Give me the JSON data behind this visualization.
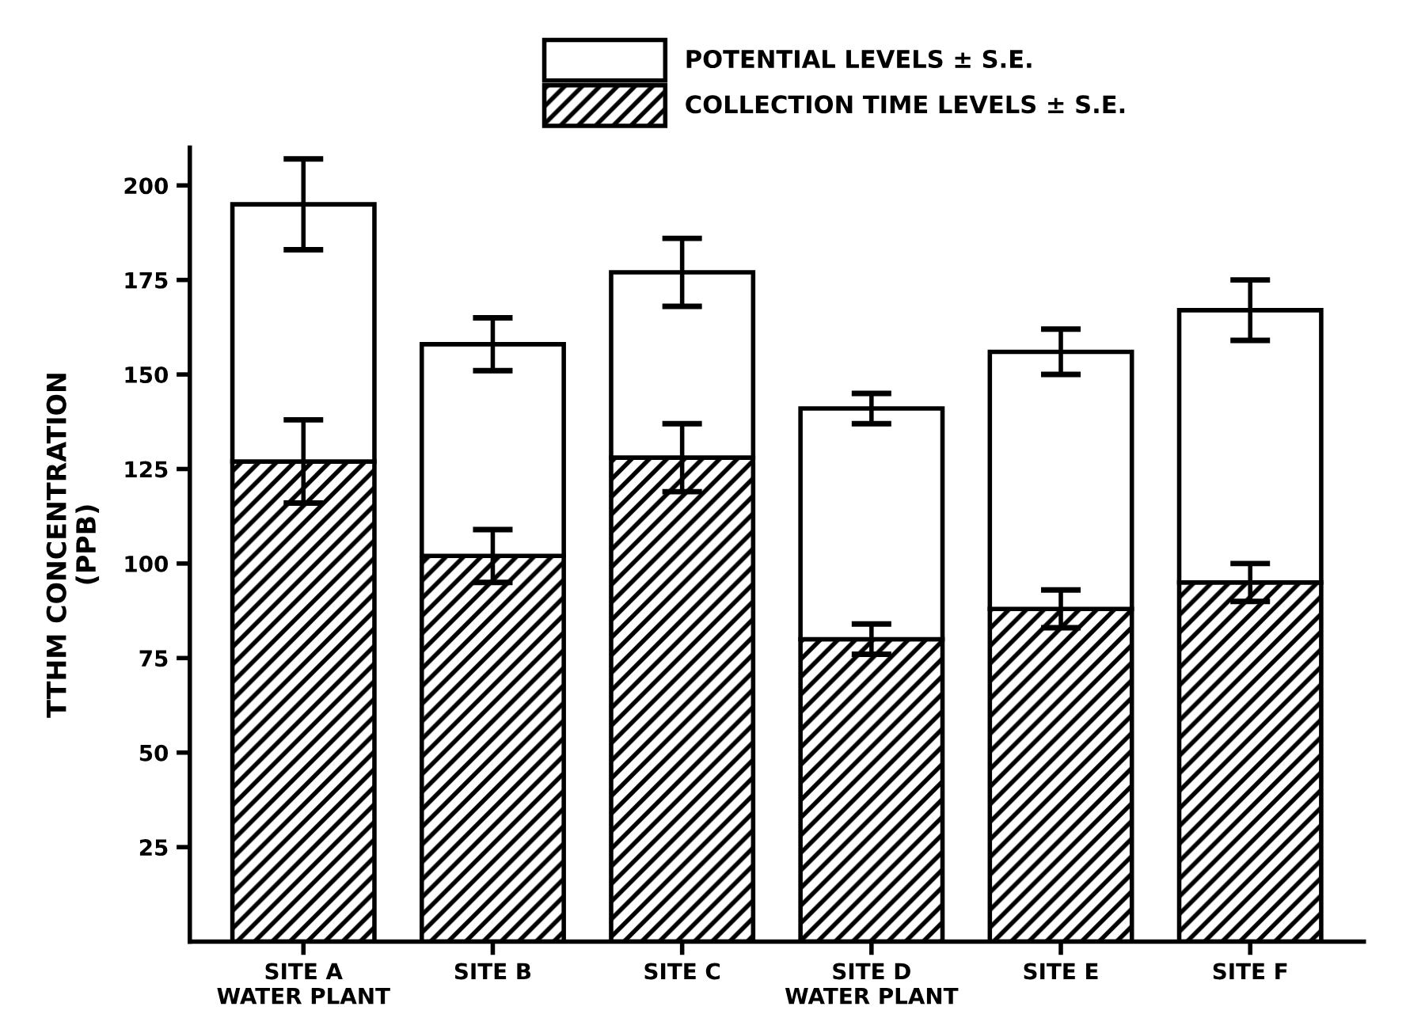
{
  "chart_data": {
    "type": "bar",
    "stacked": true,
    "ylabel": "TTHM CONCENTRATION\n(PPB)",
    "categories": [
      "SITE A\nWATER PLANT",
      "SITE B",
      "SITE C",
      "SITE D\nWATER PLANT",
      "SITE E",
      "SITE F"
    ],
    "series": [
      {
        "name": "COLLECTION TIME LEVELS ± S.E.",
        "color": "#000000",
        "values": [
          127,
          102,
          128,
          80,
          88,
          95
        ],
        "errors": [
          11,
          7,
          9,
          4,
          5,
          5
        ]
      },
      {
        "name": "POTENTIAL LEVELS ± S.E.",
        "color": "#ffffff",
        "values": [
          68,
          56,
          49,
          61,
          68,
          72
        ],
        "errors": [
          12,
          7,
          9,
          4,
          6,
          8
        ]
      }
    ],
    "ylim": [
      0,
      210
    ],
    "yticks": [
      25,
      50,
      75,
      100,
      125,
      150,
      175,
      200
    ],
    "grid": false,
    "legend": "top"
  }
}
